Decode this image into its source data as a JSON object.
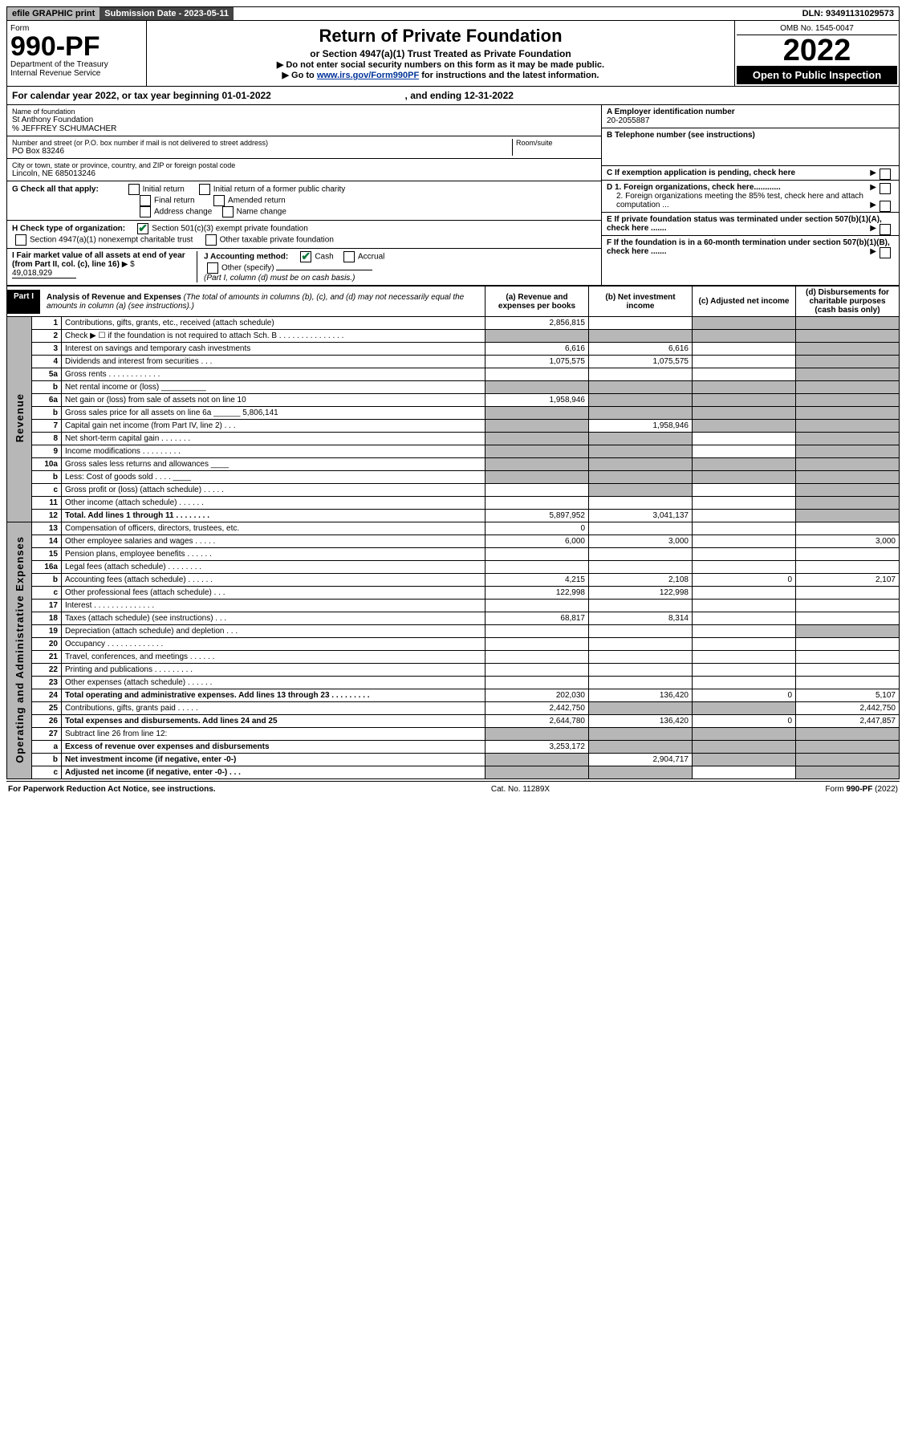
{
  "topbar": {
    "efile": "efile GRAPHIC print",
    "submission_label": "Submission Date - 2023-05-11",
    "dln": "DLN: 93491131029573"
  },
  "header": {
    "form_word": "Form",
    "form_number": "990-PF",
    "dept1": "Department of the Treasury",
    "dept2": "Internal Revenue Service",
    "title": "Return of Private Foundation",
    "subtitle": "or Section 4947(a)(1) Trust Treated as Private Foundation",
    "instr1": "▶ Do not enter social security numbers on this form as it may be made public.",
    "instr2_prefix": "▶ Go to ",
    "instr2_link": "www.irs.gov/Form990PF",
    "instr2_suffix": " for instructions and the latest information.",
    "omb": "OMB No. 1545-0047",
    "year": "2022",
    "open": "Open to Public Inspection"
  },
  "calyear": {
    "prefix": "For calendar year 2022, or tax year beginning ",
    "begin": "01-01-2022",
    "mid": " , and ending ",
    "end": "12-31-2022"
  },
  "info_left": {
    "name_label": "Name of foundation",
    "name": "St Anthony Foundation",
    "care_of": "% JEFFREY SCHUMACHER",
    "addr_label": "Number and street (or P.O. box number if mail is not delivered to street address)",
    "addr": "PO Box 83246",
    "room_label": "Room/suite",
    "city_label": "City or town, state or province, country, and ZIP or foreign postal code",
    "city": "Lincoln, NE  685013246"
  },
  "info_right": {
    "a_label": "A Employer identification number",
    "a_val": "20-2055887",
    "b_label": "B Telephone number (see instructions)",
    "c_label": "C If exemption application is pending, check here",
    "d1": "D 1. Foreign organizations, check here............",
    "d2": "2. Foreign organizations meeting the 85% test, check here and attach computation ...",
    "e": "E  If private foundation status was terminated under section 507(b)(1)(A), check here .......",
    "f": "F  If the foundation is in a 60-month termination under section 507(b)(1)(B), check here .......",
    "arrow": "▶"
  },
  "g_row": {
    "label": "G Check all that apply:",
    "opts": [
      "Initial return",
      "Final return",
      "Address change",
      "Initial return of a former public charity",
      "Amended return",
      "Name change"
    ]
  },
  "h_row": {
    "label": "H Check type of organization:",
    "opt1": "Section 501(c)(3) exempt private foundation",
    "opt2": "Section 4947(a)(1) nonexempt charitable trust",
    "opt3": "Other taxable private foundation"
  },
  "ij_row": {
    "i_label": "I Fair market value of all assets at end of year (from Part II, col. (c), line 16)",
    "i_prefix": "▶ $",
    "i_val": "49,018,929",
    "j_label": "J Accounting method:",
    "j_cash": "Cash",
    "j_accrual": "Accrual",
    "j_other": "Other (specify)",
    "j_note": "(Part I, column (d) must be on cash basis.)"
  },
  "part1": {
    "label": "Part I",
    "title": "Analysis of Revenue and Expenses",
    "note": " (The total of amounts in columns (b), (c), and (d) may not necessarily equal the amounts in column (a) (see instructions).)",
    "col_a": "(a) Revenue and expenses per books",
    "col_b": "(b) Net investment income",
    "col_c": "(c) Adjusted net income",
    "col_d": "(d) Disbursements for charitable purposes (cash basis only)"
  },
  "vert": {
    "revenue": "Revenue",
    "expenses": "Operating and Administrative Expenses"
  },
  "rows": [
    {
      "n": "1",
      "desc": "Contributions, gifts, grants, etc., received (attach schedule)",
      "a": "2,856,815",
      "b": "",
      "c": "shade",
      "d": "shade"
    },
    {
      "n": "2",
      "desc": "Check ▶ ☐ if the foundation is not required to attach Sch. B   .  .  .  .  .  .  .  .  .  .  .  .  .  .  .",
      "a": "shade",
      "b": "shade",
      "c": "shade",
      "d": "shade"
    },
    {
      "n": "3",
      "desc": "Interest on savings and temporary cash investments",
      "a": "6,616",
      "b": "6,616",
      "c": "",
      "d": "shade"
    },
    {
      "n": "4",
      "desc": "Dividends and interest from securities   .  .  .",
      "a": "1,075,575",
      "b": "1,075,575",
      "c": "",
      "d": "shade"
    },
    {
      "n": "5a",
      "desc": "Gross rents   .  .  .  .  .  .  .  .  .  .  .  .",
      "a": "",
      "b": "",
      "c": "",
      "d": "shade"
    },
    {
      "n": "b",
      "desc": "Net rental income or (loss) __________",
      "a": "shade",
      "b": "shade",
      "c": "shade",
      "d": "shade"
    },
    {
      "n": "6a",
      "desc": "Net gain or (loss) from sale of assets not on line 10",
      "a": "1,958,946",
      "b": "shade",
      "c": "shade",
      "d": "shade"
    },
    {
      "n": "b",
      "desc": "Gross sales price for all assets on line 6a ______ 5,806,141",
      "a": "shade",
      "b": "shade",
      "c": "shade",
      "d": "shade"
    },
    {
      "n": "7",
      "desc": "Capital gain net income (from Part IV, line 2)   .  .  .",
      "a": "shade",
      "b": "1,958,946",
      "c": "shade",
      "d": "shade"
    },
    {
      "n": "8",
      "desc": "Net short-term capital gain   .  .  .  .  .  .  .",
      "a": "shade",
      "b": "shade",
      "c": "",
      "d": "shade"
    },
    {
      "n": "9",
      "desc": "Income modifications  .  .  .  .  .  .  .  .  .",
      "a": "shade",
      "b": "shade",
      "c": "",
      "d": "shade"
    },
    {
      "n": "10a",
      "desc": "Gross sales less returns and allowances ____",
      "a": "shade",
      "b": "shade",
      "c": "shade",
      "d": "shade"
    },
    {
      "n": "b",
      "desc": "Less: Cost of goods sold   .  .  .  . ____",
      "a": "shade",
      "b": "shade",
      "c": "shade",
      "d": "shade"
    },
    {
      "n": "c",
      "desc": "Gross profit or (loss) (attach schedule)   .  .  .  .  .",
      "a": "",
      "b": "shade",
      "c": "",
      "d": "shade"
    },
    {
      "n": "11",
      "desc": "Other income (attach schedule)   .  .  .  .  .  .",
      "a": "",
      "b": "",
      "c": "",
      "d": "shade"
    },
    {
      "n": "12",
      "desc": "Total. Add lines 1 through 11   .  .  .  .  .  .  .  .",
      "a": "5,897,952",
      "b": "3,041,137",
      "c": "",
      "d": "shade",
      "bold": true
    },
    {
      "n": "13",
      "desc": "Compensation of officers, directors, trustees, etc.",
      "a": "0",
      "b": "",
      "c": "",
      "d": ""
    },
    {
      "n": "14",
      "desc": "Other employee salaries and wages   .  .  .  .  .",
      "a": "6,000",
      "b": "3,000",
      "c": "",
      "d": "3,000"
    },
    {
      "n": "15",
      "desc": "Pension plans, employee benefits  .  .  .  .  .  .",
      "a": "",
      "b": "",
      "c": "",
      "d": ""
    },
    {
      "n": "16a",
      "desc": "Legal fees (attach schedule)  .  .  .  .  .  .  .  .",
      "a": "",
      "b": "",
      "c": "",
      "d": ""
    },
    {
      "n": "b",
      "desc": "Accounting fees (attach schedule)  .  .  .  .  .  .",
      "a": "4,215",
      "b": "2,108",
      "c": "0",
      "d": "2,107"
    },
    {
      "n": "c",
      "desc": "Other professional fees (attach schedule)   .  .  .",
      "a": "122,998",
      "b": "122,998",
      "c": "",
      "d": ""
    },
    {
      "n": "17",
      "desc": "Interest  .  .  .  .  .  .  .  .  .  .  .  .  .  .",
      "a": "",
      "b": "",
      "c": "",
      "d": ""
    },
    {
      "n": "18",
      "desc": "Taxes (attach schedule) (see instructions)   .  .  .",
      "a": "68,817",
      "b": "8,314",
      "c": "",
      "d": ""
    },
    {
      "n": "19",
      "desc": "Depreciation (attach schedule) and depletion   .  .  .",
      "a": "",
      "b": "",
      "c": "",
      "d": "shade"
    },
    {
      "n": "20",
      "desc": "Occupancy  .  .  .  .  .  .  .  .  .  .  .  .  .",
      "a": "",
      "b": "",
      "c": "",
      "d": ""
    },
    {
      "n": "21",
      "desc": "Travel, conferences, and meetings  .  .  .  .  .  .",
      "a": "",
      "b": "",
      "c": "",
      "d": ""
    },
    {
      "n": "22",
      "desc": "Printing and publications  .  .  .  .  .  .  .  .  .",
      "a": "",
      "b": "",
      "c": "",
      "d": ""
    },
    {
      "n": "23",
      "desc": "Other expenses (attach schedule)  .  .  .  .  .  .",
      "a": "",
      "b": "",
      "c": "",
      "d": ""
    },
    {
      "n": "24",
      "desc": "Total operating and administrative expenses. Add lines 13 through 23   .  .  .  .  .  .  .  .  .",
      "a": "202,030",
      "b": "136,420",
      "c": "0",
      "d": "5,107",
      "bold": true
    },
    {
      "n": "25",
      "desc": "Contributions, gifts, grants paid   .  .  .  .  .",
      "a": "2,442,750",
      "b": "shade",
      "c": "shade",
      "d": "2,442,750"
    },
    {
      "n": "26",
      "desc": "Total expenses and disbursements. Add lines 24 and 25",
      "a": "2,644,780",
      "b": "136,420",
      "c": "0",
      "d": "2,447,857",
      "bold": true
    },
    {
      "n": "27",
      "desc": "Subtract line 26 from line 12:",
      "a": "shade",
      "b": "shade",
      "c": "shade",
      "d": "shade"
    },
    {
      "n": "a",
      "desc": "Excess of revenue over expenses and disbursements",
      "a": "3,253,172",
      "b": "shade",
      "c": "shade",
      "d": "shade",
      "bold": true
    },
    {
      "n": "b",
      "desc": "Net investment income (if negative, enter -0-)",
      "a": "shade",
      "b": "2,904,717",
      "c": "shade",
      "d": "shade",
      "bold": true
    },
    {
      "n": "c",
      "desc": "Adjusted net income (if negative, enter -0-)   .  .  .",
      "a": "shade",
      "b": "shade",
      "c": "",
      "d": "shade",
      "bold": true
    }
  ],
  "footer": {
    "left": "For Paperwork Reduction Act Notice, see instructions.",
    "mid": "Cat. No. 11289X",
    "right": "Form 990-PF (2022)"
  }
}
